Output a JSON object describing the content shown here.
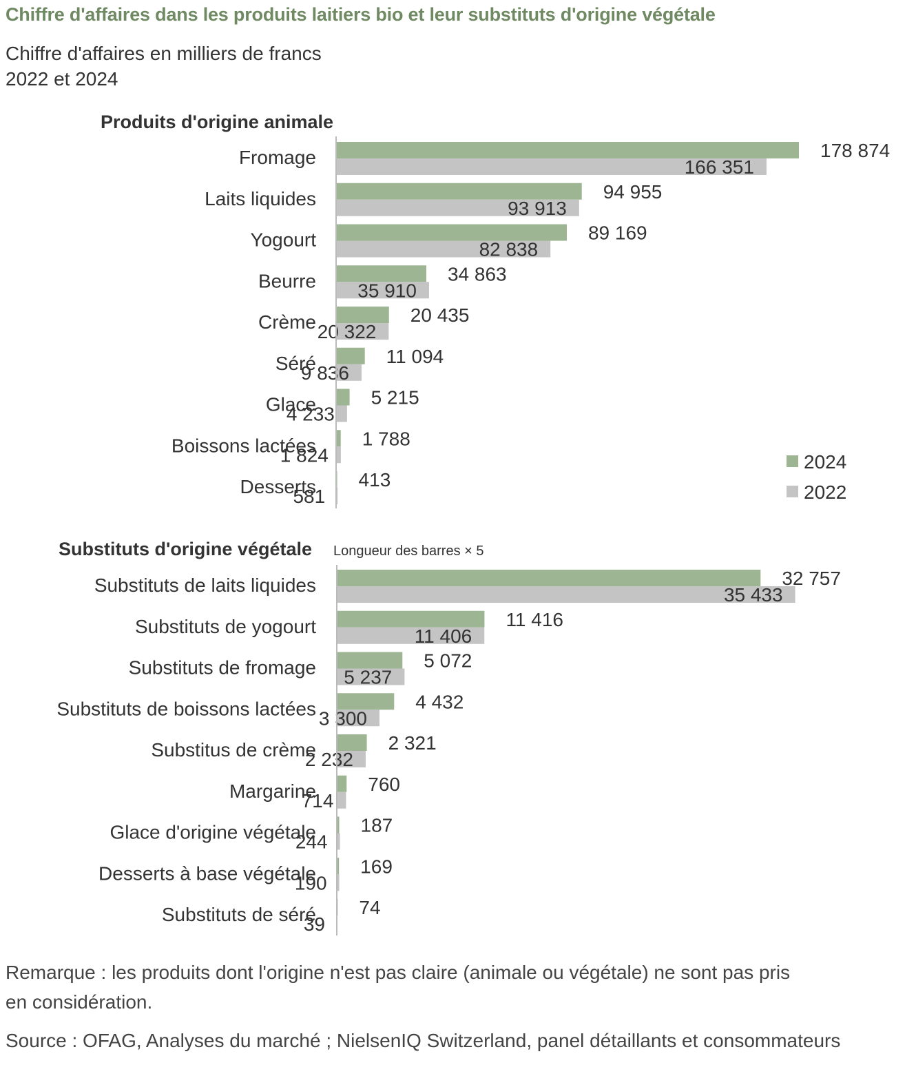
{
  "title": "Chiffre d'affaires dans les produits laitiers bio et leur substituts d'origine végétale",
  "subtitle_line1": "Chiffre d'affaires en milliers de francs",
  "subtitle_line2": "2022 et 2024",
  "note_line1": "Remarque : les produits dont l'origine n'est pas claire (animale ou végétale) ne sont pas pris",
  "note_line2": "en considération.",
  "source": "Source : OFAG, Analyses du marché ; NielsenIQ Switzerland, panel détaillants et consommateurs",
  "colors": {
    "y2024": "#9db592",
    "y2022": "#c4c4c4",
    "axis": "#bbbbbb"
  },
  "chart_data": [
    {
      "type": "bar",
      "orientation": "horizontal",
      "title": "Produits d'origine animale",
      "categories": [
        "Fromage",
        "Laits liquides",
        "Yogourt",
        "Beurre",
        "Crème",
        "Séré",
        "Glace",
        "Boissons lactées",
        "Desserts"
      ],
      "series": [
        {
          "name": "2024",
          "values": [
            178874,
            94955,
            89169,
            34863,
            20435,
            11094,
            5215,
            1788,
            413
          ],
          "labels": [
            "178 874",
            "94 955",
            "89 169",
            "34 863",
            "20 435",
            "11 094",
            "5 215",
            "1 788",
            "413"
          ]
        },
        {
          "name": "2022",
          "values": [
            166351,
            93913,
            82838,
            35910,
            20322,
            9836,
            4233,
            1824,
            581
          ],
          "labels": [
            "166 351",
            "93 913",
            "82 838",
            "35 910",
            "20 322",
            "9 836",
            "4 233",
            "1 824",
            "581"
          ]
        }
      ],
      "legend": [
        "2024",
        "2022"
      ],
      "legend_position": "bottom-right",
      "scale_factor": 1
    },
    {
      "type": "bar",
      "orientation": "horizontal",
      "title": "Substituts d'origine végétale",
      "annotation": "Longueur des barres × 5",
      "categories": [
        "Substituts de laits liquides",
        "Substituts de yogourt",
        "Substituts de fromage",
        "Substituts de boissons lactées",
        "Substitus de crème",
        "Margarine",
        "Glace d'origine végétale",
        "Desserts à base végétale",
        "Substituts de séré"
      ],
      "series": [
        {
          "name": "2024",
          "values": [
            32757,
            11416,
            5072,
            4432,
            2321,
            760,
            187,
            169,
            74
          ],
          "labels": [
            "32 757",
            "11 416",
            "5 072",
            "4 432",
            "2 321",
            "760",
            "187",
            "169",
            "74"
          ]
        },
        {
          "name": "2022",
          "values": [
            35433,
            11406,
            5237,
            3300,
            2232,
            714,
            244,
            190,
            39
          ],
          "labels": [
            "35 433",
            "11 406",
            "5 237",
            "3 300",
            "2 232",
            "714",
            "244",
            "190",
            "39"
          ]
        }
      ],
      "scale_factor": 5
    }
  ]
}
